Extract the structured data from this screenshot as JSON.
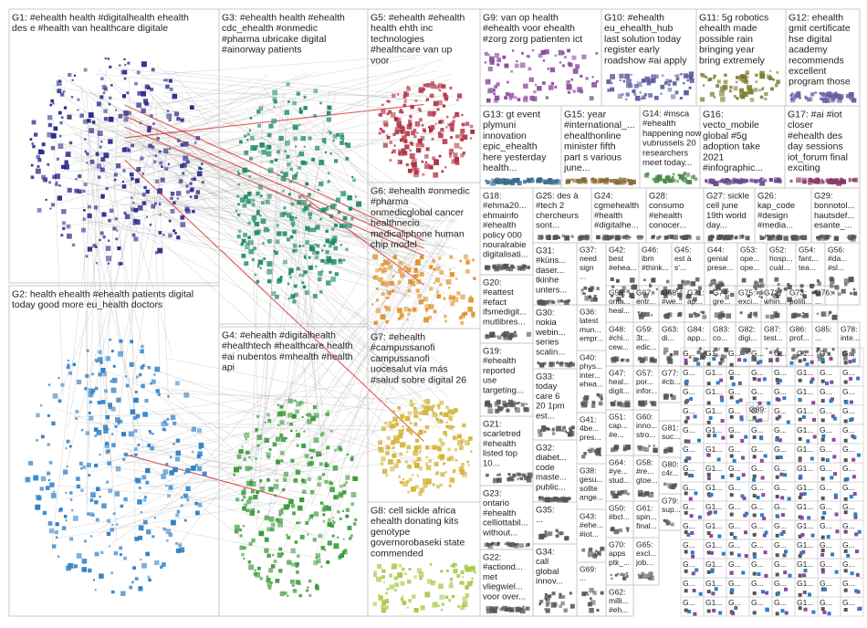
{
  "groups": [
    {
      "id": "G1",
      "lines": [
        "G1: #ehealth health #digitalhealth ehealth",
        "des e #health van healthcare digitale"
      ],
      "color": "#2b2b8a"
    },
    {
      "id": "G2",
      "lines": [
        "G2: health ehealth #ehealth patients digital",
        "today good more eu_health doctors"
      ],
      "color": "#2f7fc4"
    },
    {
      "id": "G3",
      "lines": [
        "G3: #ehealth health #ehealth",
        "cdc_ehealth #onmedic",
        "#pharma ubricake digital",
        "#ainorway patients"
      ],
      "color": "#1f8a6a"
    },
    {
      "id": "G4",
      "lines": [
        "G4: #ehealth #digitalhealth",
        "#healthtech #healthcare health",
        "#ai nubentos #mhealth #health",
        "api"
      ],
      "color": "#3a9a3a"
    },
    {
      "id": "G5",
      "lines": [
        "G5: #ehealth #ehealth",
        "health ehth inc",
        "technologies",
        "#healthcare van up",
        "voor"
      ],
      "color": "#b03040"
    },
    {
      "id": "G6",
      "lines": [
        "G6: #ehealth #onmedic",
        "#pharma",
        "onmedicglobal cancer",
        "healthnecio",
        "medicaliphone human",
        "chip model"
      ],
      "color": "#e0902a"
    },
    {
      "id": "G7",
      "lines": [
        "G7: #ehealth",
        "#campussanofi",
        "campussanofi",
        "uocesalut vía más",
        "#salud sobre digital 26"
      ],
      "color": "#d4b43a"
    },
    {
      "id": "G8",
      "lines": [
        "G8: cell sickle africa",
        "ehealth donating kits",
        "genotype",
        "governorobaseki state",
        "commended"
      ],
      "color": "#a8c84a"
    },
    {
      "id": "G9",
      "lines": [
        "G9: van op health",
        "#ehealth voor ehealth",
        "#zorg zorg patienten ict"
      ],
      "color": "#8a4a9a"
    },
    {
      "id": "G10",
      "lines": [
        "G10: #ehealth",
        "eu_ehealth_hub",
        "last solution today",
        "register early",
        "roadshow #ai apply"
      ],
      "color": "#5a5aa0"
    },
    {
      "id": "G11",
      "lines": [
        "G11: 5g robotics",
        "ehealth made",
        "possible rain",
        "bringing year",
        "bring extremely"
      ],
      "color": "#7a7a30"
    },
    {
      "id": "G12",
      "lines": [
        "G12: ehealth",
        "gmit certificate",
        "hse digital",
        "academy",
        "recommends",
        "excellent",
        "program those"
      ],
      "color": "#6060a0"
    },
    {
      "id": "G13",
      "lines": [
        "G13: gt event",
        "plymuni",
        "innovation",
        "epic_ehealth",
        "here yesterday",
        "health..."
      ],
      "color": "#3a6a8a"
    },
    {
      "id": "G15",
      "lines": [
        "G15: year",
        "#international_...",
        "ehealthonline",
        "minister fifth",
        "part s various",
        "june..."
      ],
      "color": "#8a6a3a"
    },
    {
      "id": "G14",
      "lines": [
        "G14: #msca",
        "#ehealth",
        "happening now",
        "vubrussels 20",
        "researchers",
        "meet today..."
      ],
      "color": "#4a8a4a"
    },
    {
      "id": "G16",
      "lines": [
        "G16:",
        "vecto_mobile",
        "global #5g",
        "adoption take",
        "2021",
        "#infographic..."
      ],
      "color": "#6a4a8a"
    },
    {
      "id": "G17",
      "lines": [
        "G17: #ai #iot",
        "closer",
        "#ehealth des",
        "day sessions",
        "iot_forum final",
        "exciting"
      ],
      "color": "#8a3a6a"
    },
    {
      "id": "G18",
      "lines": [
        "G18:",
        "#ehma20...",
        "ehmainfo",
        "#ehealth",
        "policy 000",
        "nouralrabie",
        "digitalisati..."
      ],
      "color": "#555"
    },
    {
      "id": "G25",
      "lines": [
        "G25: des à",
        "#tech 2",
        "chercheurs",
        "sont..."
      ],
      "color": "#555"
    },
    {
      "id": "G24",
      "lines": [
        "G24:",
        "cgmehealth",
        "#health",
        "#digitalhe..."
      ],
      "color": "#555"
    },
    {
      "id": "G28",
      "lines": [
        "G28:",
        "consumo",
        "#ehealth",
        "conocer..."
      ],
      "color": "#555"
    },
    {
      "id": "G27",
      "lines": [
        "G27: sickle",
        "cell june",
        "19th world",
        "day..."
      ],
      "color": "#555"
    },
    {
      "id": "G26",
      "lines": [
        "G26:",
        "kap_code",
        "#design",
        "#media..."
      ],
      "color": "#555"
    },
    {
      "id": "G29",
      "lines": [
        "G29:",
        "bonnotol...",
        "hautsdef...",
        "esante_..."
      ],
      "color": "#555"
    },
    {
      "id": "G20",
      "lines": [
        "G20:",
        "#eattest",
        "#efact",
        "ifsmedigit...",
        "mutlibres..."
      ],
      "color": "#555"
    },
    {
      "id": "G31",
      "lines": [
        "G31:",
        "#küns...",
        "daser...",
        "tkinhe",
        "unters..."
      ],
      "color": "#555"
    },
    {
      "id": "G37",
      "lines": [
        "G37:",
        "need",
        "sign",
        "..."
      ],
      "color": "#555"
    },
    {
      "id": "G42",
      "lines": [
        "G42:",
        "best",
        "#ehea..."
      ],
      "color": "#555"
    },
    {
      "id": "G46",
      "lines": [
        "G46:",
        "ibm",
        "#think..."
      ],
      "color": "#555"
    },
    {
      "id": "G45",
      "lines": [
        "G45:",
        "est à",
        "s'..."
      ],
      "color": "#555"
    },
    {
      "id": "G44",
      "lines": [
        "G44:",
        "genial",
        "prese..."
      ],
      "color": "#555"
    },
    {
      "id": "G53",
      "lines": [
        "G53:",
        "ope...",
        "ope..."
      ],
      "color": "#555"
    },
    {
      "id": "G52",
      "lines": [
        "G52:",
        "hosp...",
        "cuál..."
      ],
      "color": "#555"
    },
    {
      "id": "G54",
      "lines": [
        "G54:",
        "fant...",
        "tea..."
      ],
      "color": "#555"
    },
    {
      "id": "G56",
      "lines": [
        "G56:",
        "#da...",
        "#sl..."
      ],
      "color": "#555"
    },
    {
      "id": "G19",
      "lines": [
        "G19:",
        "#ehealth",
        "reported",
        "use",
        "targeting..."
      ],
      "color": "#555"
    },
    {
      "id": "G30",
      "lines": [
        "G30:",
        "nokia",
        "webin...",
        "series",
        "scalin..."
      ],
      "color": "#555"
    },
    {
      "id": "G36",
      "lines": [
        "G36:",
        "latest",
        "mun...",
        "empr..."
      ],
      "color": "#555"
    },
    {
      "id": "G55",
      "lines": [
        "G55:",
        "onta...",
        "heal..."
      ],
      "color": "#555"
    },
    {
      "id": "G67",
      "lines": [
        "G67:",
        "entr..."
      ],
      "color": "#555"
    },
    {
      "id": "G68",
      "lines": [
        "G68:",
        "#we..."
      ],
      "color": "#555"
    },
    {
      "id": "G71",
      "lines": [
        "G71:",
        "ap..."
      ],
      "color": "#555"
    },
    {
      "id": "G74",
      "lines": [
        "G74:",
        "gre..."
      ],
      "color": "#555"
    },
    {
      "id": "G75",
      "lines": [
        "G75:",
        "exci..."
      ],
      "color": "#555"
    },
    {
      "id": "G72",
      "lines": [
        "G72:",
        "whin..."
      ],
      "color": "#555"
    },
    {
      "id": "G73",
      "lines": [
        "G73:",
        "politi..."
      ],
      "color": "#555"
    },
    {
      "id": "G76",
      "lines": [
        "G76:",
        "..."
      ],
      "color": "#555"
    },
    {
      "id": "G21",
      "lines": [
        "G21:",
        "scarletred",
        "#ehealth",
        "listed top",
        "10..."
      ],
      "color": "#555"
    },
    {
      "id": "G33",
      "lines": [
        "G33:",
        "today",
        "care 6",
        "20 1pm",
        "est..."
      ],
      "color": "#555"
    },
    {
      "id": "G40",
      "lines": [
        "G40:",
        "phys...",
        "inter...",
        "ehea..."
      ],
      "color": "#555"
    },
    {
      "id": "G48",
      "lines": [
        "G48:",
        "#chi...",
        "cew..."
      ],
      "color": "#555"
    },
    {
      "id": "G59",
      "lines": [
        "G59:",
        "3t...",
        "edic..."
      ],
      "color": "#555"
    },
    {
      "id": "G63",
      "lines": [
        "G63:",
        "di..."
      ],
      "color": "#555"
    },
    {
      "id": "G84",
      "lines": [
        "G84:",
        "app..."
      ],
      "color": "#555"
    },
    {
      "id": "G83",
      "lines": [
        "G83:",
        "co..."
      ],
      "color": "#555"
    },
    {
      "id": "G82",
      "lines": [
        "G82:",
        "digi..."
      ],
      "color": "#555"
    },
    {
      "id": "G87",
      "lines": [
        "G87:",
        "test..."
      ],
      "color": "#555"
    },
    {
      "id": "G86",
      "lines": [
        "G86:",
        "prof..."
      ],
      "color": "#555"
    },
    {
      "id": "G85",
      "lines": [
        "G85:",
        "..."
      ],
      "color": "#555"
    },
    {
      "id": "G78",
      "lines": [
        "G78:",
        "inte..."
      ],
      "color": "#555"
    },
    {
      "id": "G32",
      "lines": [
        "G32:",
        "diabet...",
        "code",
        "maste...",
        "public..."
      ],
      "color": "#555"
    },
    {
      "id": "G41",
      "lines": [
        "G41:",
        "4be...",
        "pres..."
      ],
      "color": "#555"
    },
    {
      "id": "G47",
      "lines": [
        "G47:",
        "heal...",
        "digit..."
      ],
      "color": "#555"
    },
    {
      "id": "G23",
      "lines": [
        "G23:",
        "ontario",
        "#ehealth",
        "celliottabil...",
        "without..."
      ],
      "color": "#555"
    },
    {
      "id": "G38",
      "lines": [
        "G38:",
        "gesu...",
        "sollte",
        "ange..."
      ],
      "color": "#555"
    },
    {
      "id": "G51",
      "lines": [
        "G51:",
        "cap...",
        "#e..."
      ],
      "color": "#555"
    },
    {
      "id": "G35",
      "lines": [
        "G35:",
        "..."
      ],
      "color": "#555"
    },
    {
      "id": "G64",
      "lines": [
        "G64:",
        "#ye...",
        "stud..."
      ],
      "color": "#555"
    },
    {
      "id": "G50",
      "lines": [
        "G50:",
        "#bcl..."
      ],
      "color": "#555"
    },
    {
      "id": "G22",
      "lines": [
        "G22:",
        "#actiond...",
        "met",
        "vliegwiel...",
        "voor over..."
      ],
      "color": "#555"
    },
    {
      "id": "G34",
      "lines": [
        "G34:",
        "call",
        "global",
        "innov..."
      ],
      "color": "#555"
    },
    {
      "id": "G43",
      "lines": [
        "G43:",
        "#ehe...",
        "#iot..."
      ],
      "color": "#555"
    },
    {
      "id": "G69",
      "lines": [
        "G69:",
        "..."
      ],
      "color": "#555"
    },
    {
      "id": "G70",
      "lines": [
        "G70:",
        "apps",
        "ptk_..."
      ],
      "color": "#555"
    },
    {
      "id": "G62",
      "lines": [
        "G62:",
        "milli...",
        "#eh..."
      ],
      "color": "#555"
    },
    {
      "id": "G65",
      "lines": [
        "G65:",
        "excl...",
        "job..."
      ],
      "color": "#555"
    },
    {
      "id": "G57",
      "lines": [
        "G57:",
        "por...",
        "infor..."
      ],
      "color": "#555"
    },
    {
      "id": "G60",
      "lines": [
        "G60:",
        "inno...",
        "stro..."
      ],
      "color": "#555"
    },
    {
      "id": "G58",
      "lines": [
        "G58:",
        "#re...",
        "gtoe..."
      ],
      "color": "#555"
    },
    {
      "id": "G61",
      "lines": [
        "G61:",
        "spin...",
        "final..."
      ],
      "color": "#555"
    },
    {
      "id": "G79",
      "lines": [
        "G79:",
        "sup..."
      ],
      "color": "#555"
    },
    {
      "id": "G80",
      "lines": [
        "G80:",
        "c4r..."
      ],
      "color": "#555"
    },
    {
      "id": "G81",
      "lines": [
        "G81:",
        "suc..."
      ],
      "color": "#555"
    },
    {
      "id": "G77",
      "lines": [
        "G77:",
        "#cb..."
      ],
      "color": "#555"
    },
    {
      "id": "G89",
      "lines": [
        "G89:",
        "..."
      ],
      "color": "#555"
    }
  ],
  "small_labels": [
    "G...",
    "G1...",
    "G...",
    "G..."
  ]
}
